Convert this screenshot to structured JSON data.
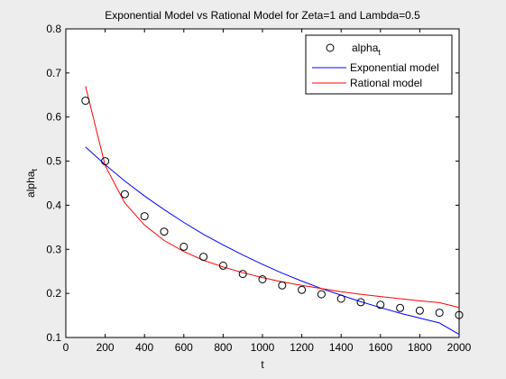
{
  "chart_data": {
    "type": "scatter",
    "title": "Exponential Model vs Rational Model for Zeta=1 and Lambda=0.5",
    "xlabel": "t",
    "ylabel": {
      "base": "alpha",
      "sub": "t"
    },
    "xlim": [
      0,
      2000
    ],
    "ylim": [
      0.1,
      0.8
    ],
    "xticks": [
      "0",
      "200",
      "400",
      "600",
      "800",
      "1000",
      "1200",
      "1400",
      "1600",
      "1800",
      "2000"
    ],
    "yticks": [
      "0.1",
      "0.2",
      "0.3",
      "0.4",
      "0.5",
      "0.6",
      "0.7",
      "0.8"
    ],
    "grid": false,
    "legend_position": "top-right",
    "series": [
      {
        "name": {
          "base": "alpha",
          "sub": "t"
        },
        "kind": "markers",
        "color": "#000000",
        "x": [
          100,
          200,
          300,
          400,
          500,
          600,
          700,
          800,
          900,
          1000,
          1100,
          1200,
          1300,
          1400,
          1500,
          1600,
          1700,
          1800,
          1900,
          2000
        ],
        "y": [
          0.637,
          0.5,
          0.425,
          0.375,
          0.34,
          0.306,
          0.283,
          0.263,
          0.244,
          0.232,
          0.218,
          0.208,
          0.198,
          0.188,
          0.18,
          0.174,
          0.167,
          0.161,
          0.156,
          0.151
        ]
      },
      {
        "name": "Exponential model",
        "kind": "line",
        "color": "#0000ff",
        "x": [
          100,
          200,
          300,
          400,
          500,
          600,
          700,
          800,
          900,
          1000,
          1100,
          1200,
          1300,
          1400,
          1500,
          1600,
          1700,
          1800,
          1900,
          2000
        ],
        "y": [
          0.532,
          0.492,
          0.455,
          0.421,
          0.39,
          0.361,
          0.334,
          0.31,
          0.287,
          0.266,
          0.246,
          0.228,
          0.211,
          0.196,
          0.181,
          0.168,
          0.155,
          0.144,
          0.133,
          0.107
        ]
      },
      {
        "name": "Rational model",
        "kind": "line",
        "color": "#ff0000",
        "x": [
          100,
          200,
          300,
          400,
          500,
          600,
          700,
          800,
          900,
          1000,
          1100,
          1200,
          1300,
          1400,
          1500,
          1600,
          1700,
          1800,
          1900,
          2000
        ],
        "y": [
          0.67,
          0.49,
          0.405,
          0.355,
          0.32,
          0.295,
          0.275,
          0.26,
          0.247,
          0.236,
          0.226,
          0.218,
          0.211,
          0.204,
          0.198,
          0.193,
          0.188,
          0.183,
          0.179,
          0.168
        ]
      }
    ]
  }
}
